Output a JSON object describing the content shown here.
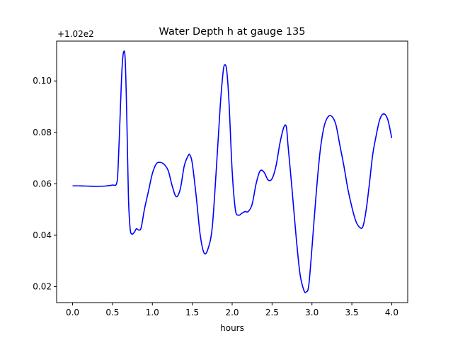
{
  "chart_data": {
    "type": "line",
    "title": "Water Depth h at gauge 135",
    "xlabel": "hours",
    "ylabel": "",
    "offset_label": "+1.02e2",
    "xlim": [
      -0.2,
      4.2
    ],
    "ylim": [
      0.0138,
      0.1155
    ],
    "x_ticks": [
      0.0,
      0.5,
      1.0,
      1.5,
      2.0,
      2.5,
      3.0,
      3.5,
      4.0
    ],
    "x_tick_labels": [
      "0.0",
      "0.5",
      "1.0",
      "1.5",
      "2.0",
      "2.5",
      "3.0",
      "3.5",
      "4.0"
    ],
    "y_ticks": [
      0.02,
      0.04,
      0.06,
      0.08,
      0.1
    ],
    "y_tick_labels": [
      "0.02",
      "0.04",
      "0.06",
      "0.08",
      "0.10"
    ],
    "grid": false,
    "series": [
      {
        "color": "#0000ff",
        "x": [
          0.0,
          0.1,
          0.2,
          0.3,
          0.4,
          0.5,
          0.55,
          0.57,
          0.6,
          0.62,
          0.64,
          0.66,
          0.68,
          0.7,
          0.72,
          0.74,
          0.77,
          0.8,
          0.83,
          0.86,
          0.9,
          0.95,
          1.0,
          1.05,
          1.1,
          1.15,
          1.2,
          1.25,
          1.3,
          1.35,
          1.4,
          1.45,
          1.47,
          1.5,
          1.55,
          1.6,
          1.65,
          1.7,
          1.75,
          1.8,
          1.85,
          1.88,
          1.9,
          1.93,
          1.96,
          2.0,
          2.04,
          2.08,
          2.12,
          2.16,
          2.2,
          2.25,
          2.3,
          2.35,
          2.4,
          2.45,
          2.5,
          2.55,
          2.6,
          2.65,
          2.68,
          2.7,
          2.75,
          2.8,
          2.85,
          2.9,
          2.93,
          2.96,
          3.0,
          3.05,
          3.1,
          3.15,
          3.2,
          3.25,
          3.3,
          3.35,
          3.4,
          3.45,
          3.5,
          3.55,
          3.6,
          3.64,
          3.68,
          3.72,
          3.76,
          3.8,
          3.85,
          3.9,
          3.95,
          4.0
        ],
        "y": [
          0.0592,
          0.0592,
          0.0591,
          0.059,
          0.0591,
          0.0595,
          0.06,
          0.066,
          0.09,
          0.105,
          0.1113,
          0.108,
          0.085,
          0.055,
          0.043,
          0.0405,
          0.041,
          0.0425,
          0.042,
          0.043,
          0.05,
          0.057,
          0.064,
          0.0678,
          0.0683,
          0.0675,
          0.065,
          0.059,
          0.055,
          0.058,
          0.067,
          0.071,
          0.0712,
          0.068,
          0.055,
          0.04,
          0.033,
          0.035,
          0.043,
          0.065,
          0.09,
          0.1015,
          0.106,
          0.1045,
          0.092,
          0.065,
          0.05,
          0.0478,
          0.0485,
          0.0492,
          0.0492,
          0.052,
          0.06,
          0.065,
          0.0645,
          0.0615,
          0.062,
          0.067,
          0.076,
          0.0822,
          0.082,
          0.075,
          0.058,
          0.04,
          0.025,
          0.0185,
          0.018,
          0.0205,
          0.035,
          0.055,
          0.072,
          0.082,
          0.086,
          0.0862,
          0.083,
          0.075,
          0.067,
          0.058,
          0.051,
          0.0455,
          0.043,
          0.0435,
          0.05,
          0.06,
          0.071,
          0.078,
          0.085,
          0.0872,
          0.085,
          0.0778
        ]
      }
    ]
  }
}
